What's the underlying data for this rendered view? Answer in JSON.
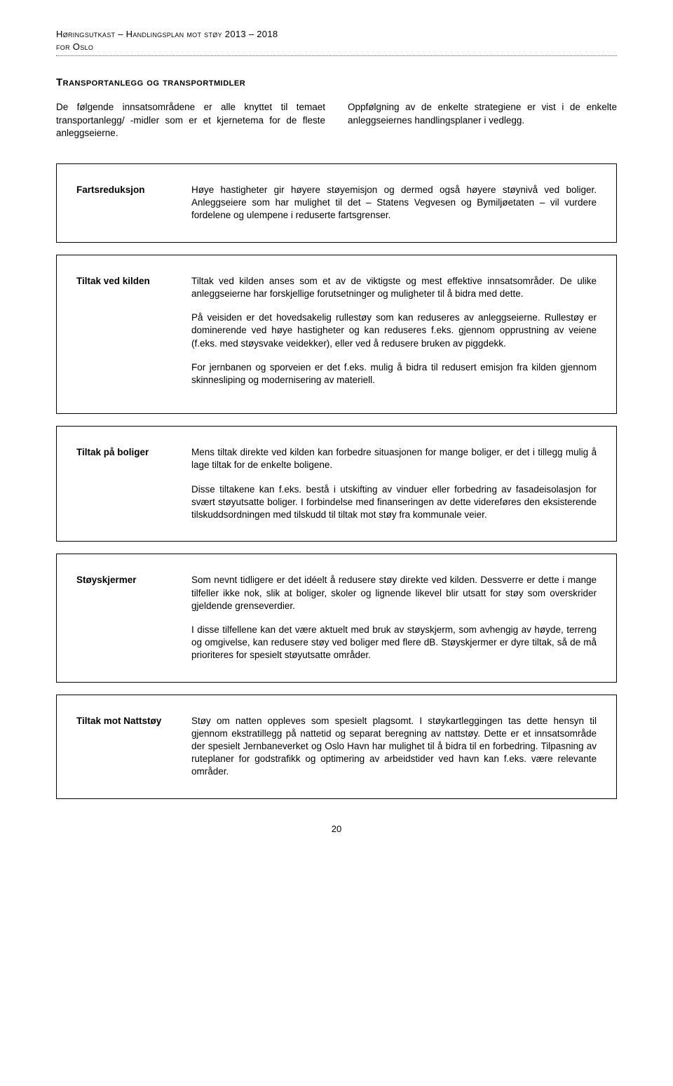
{
  "header": {
    "line1": "Høringsutkast – Handlingsplan mot støy 2013 – 2018",
    "line2": "for Oslo"
  },
  "section_title": "Transportanlegg og transportmidler",
  "intro": {
    "left": "De følgende innsatsområdene er alle knyttet til temaet transportanlegg/ -midler som er et kjernetema for de fleste anleggseierne.",
    "right": "Oppfølgning av de enkelte strategiene er vist i de enkelte anleggseiernes handlingsplaner i vedlegg."
  },
  "blocks": [
    {
      "label": "Fartsreduksjon",
      "paras": [
        "Høye hastigheter gir høyere støyemisjon og dermed også høyere støynivå ved boliger. Anleggseiere som har mulighet til det – Statens Vegvesen og Bymiljøetaten – vil vurdere fordelene og ulempene i reduserte fartsgrenser."
      ]
    },
    {
      "label": "Tiltak ved kilden",
      "paras": [
        "Tiltak ved kilden anses som et av de viktigste og mest effektive innsatsområder. De ulike anleggseierne har forskjellige forutsetninger og muligheter til å bidra med dette.",
        "På veisiden er det hovedsakelig rullestøy som kan reduseres av anleggseierne. Rullestøy er dominerende ved høye hastigheter og kan reduseres f.eks. gjennom opprustning av veiene (f.eks. med støysvake veidekker), eller ved å redusere bruken av piggdekk.",
        "For jernbanen og sporveien er det f.eks. mulig å bidra til redusert emisjon fra kilden gjennom skinnesliping og modernisering av materiell."
      ]
    },
    {
      "label": "Tiltak på boliger",
      "paras": [
        "Mens tiltak direkte ved kilden kan forbedre situasjonen for mange boliger, er det i tillegg mulig å lage tiltak for de enkelte boligene.",
        "Disse tiltakene kan f.eks. bestå i utskifting av vinduer eller forbedring av fasadeisolasjon for svært støyutsatte boliger. I forbindelse med finanseringen av dette videreføres den eksisterende tilskuddsordningen med tilskudd til tiltak mot støy fra kommunale veier."
      ]
    },
    {
      "label": "Støyskjermer",
      "paras": [
        "Som nevnt tidligere er det idéelt å redusere støy direkte ved kilden. Dessverre er dette i mange tilfeller ikke nok, slik at boliger, skoler og lignende likevel blir utsatt for støy som overskrider gjeldende grenseverdier.",
        "I disse tilfellene kan det være aktuelt med bruk av støyskjerm, som avhengig av høyde, terreng og omgivelse, kan redusere støy ved boliger med flere dB. Støyskjermer er dyre tiltak, så de må prioriteres for spesielt støyutsatte områder."
      ]
    },
    {
      "label": "Tiltak mot Nattstøy",
      "paras": [
        "Støy om natten oppleves som spesielt plagsomt. I støykartleggingen tas dette hensyn til gjennom ekstratillegg på nattetid og separat beregning av nattstøy. Dette er et innsatsområde der spesielt Jernbaneverket og Oslo Havn har mulighet til å bidra til en forbedring. Tilpasning av ruteplaner for godstrafikk og optimering av arbeidstider ved havn kan f.eks. være relevante områder."
      ]
    }
  ],
  "page_number": "20"
}
